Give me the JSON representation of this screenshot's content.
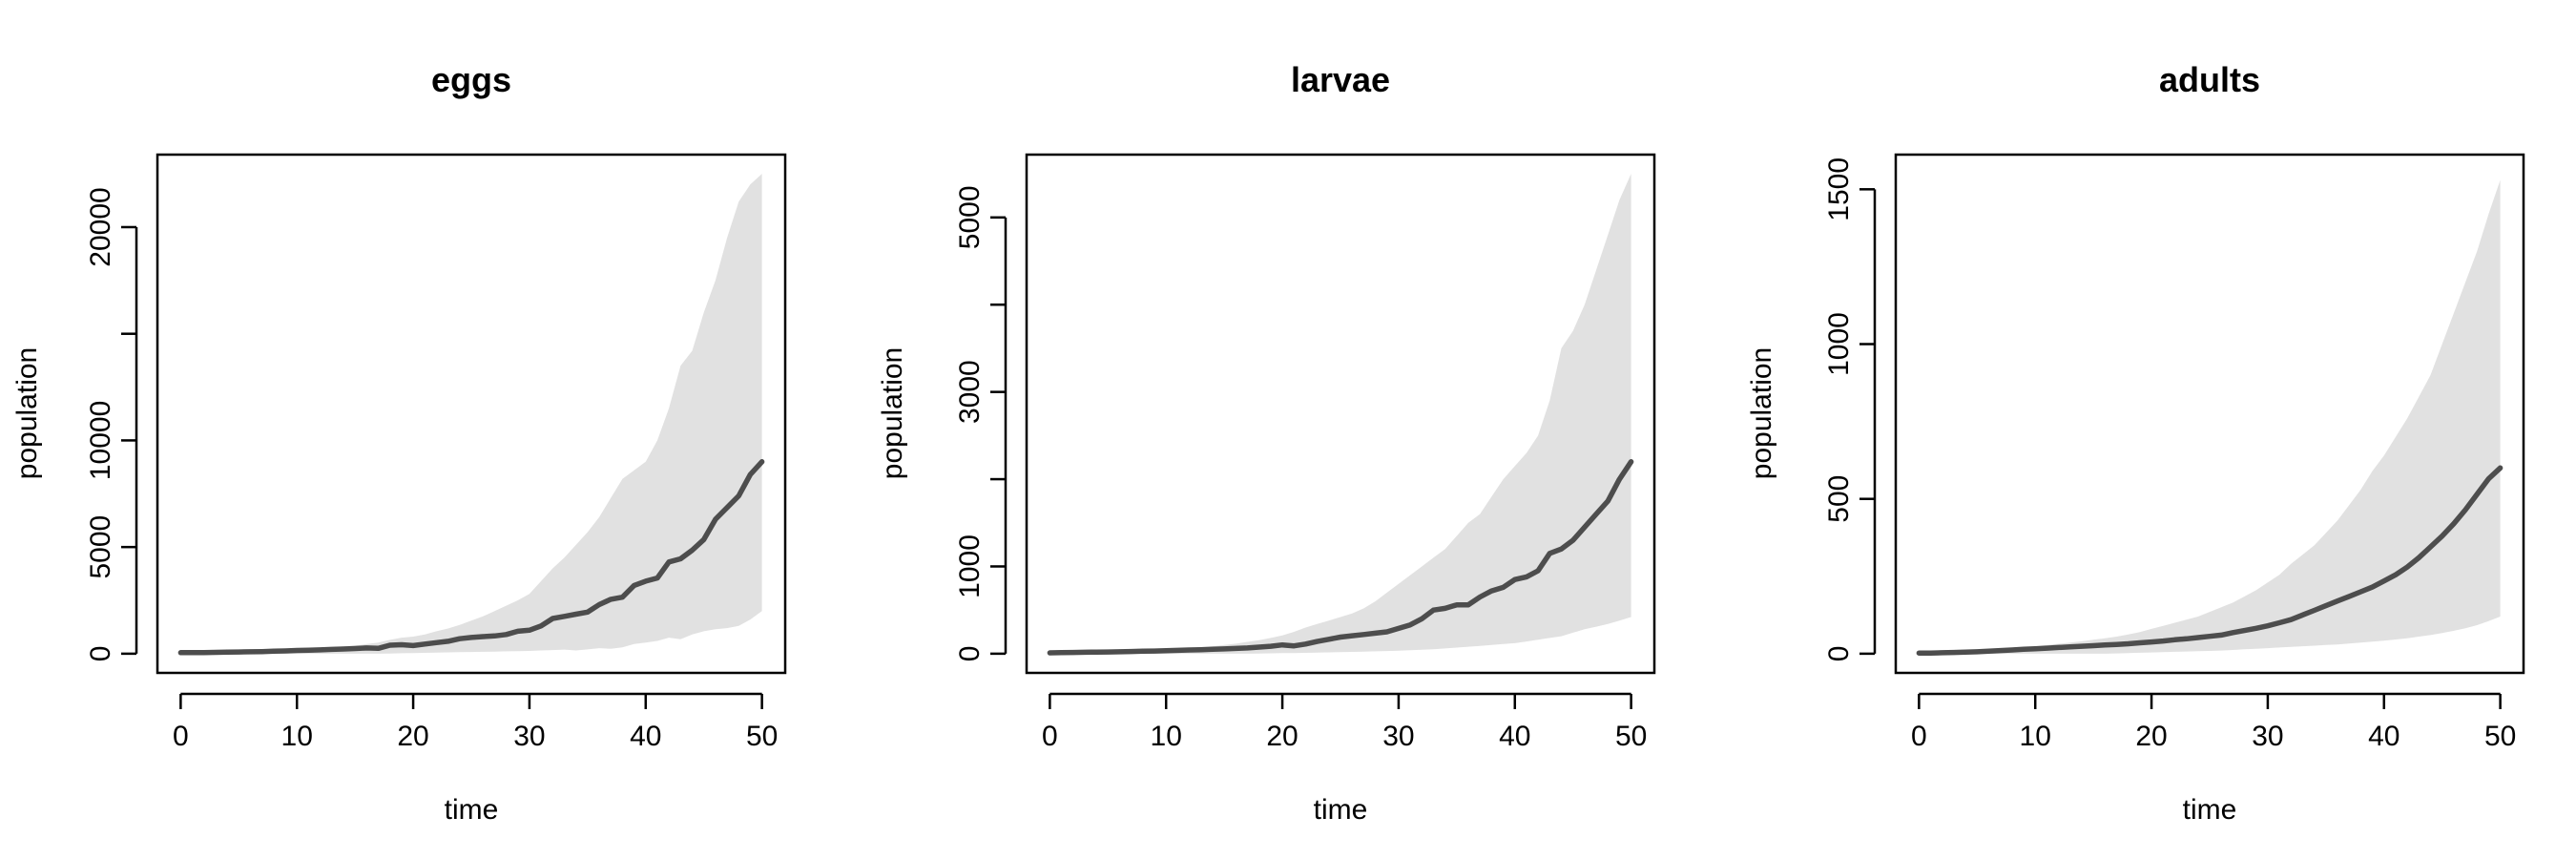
{
  "colors": {
    "band": "#e1e1e1",
    "line": "#4d4d4d",
    "axis": "#000000",
    "background": "#ffffff"
  },
  "chart_data": [
    {
      "type": "area",
      "title": "eggs",
      "xlabel": "time",
      "ylabel": "population",
      "xlim": [
        0,
        50
      ],
      "ylim": [
        0,
        22500
      ],
      "xticks": [
        0,
        10,
        20,
        30,
        40,
        50
      ],
      "yticks": [
        0,
        5000,
        10000,
        15000,
        20000
      ],
      "ytick_labels": [
        "0",
        "5000",
        "10000",
        "",
        "20000"
      ],
      "grid": false,
      "x": [
        0,
        1,
        2,
        3,
        4,
        5,
        6,
        7,
        8,
        9,
        10,
        11,
        12,
        13,
        14,
        15,
        16,
        17,
        18,
        19,
        20,
        21,
        22,
        23,
        24,
        25,
        26,
        27,
        28,
        29,
        30,
        31,
        32,
        33,
        34,
        35,
        36,
        37,
        38,
        39,
        40,
        41,
        42,
        43,
        44,
        45,
        46,
        47,
        48,
        49,
        50
      ],
      "mean": [
        50,
        50,
        55,
        60,
        70,
        80,
        90,
        100,
        115,
        130,
        150,
        165,
        180,
        200,
        220,
        240,
        270,
        250,
        400,
        420,
        380,
        450,
        520,
        580,
        700,
        760,
        800,
        830,
        900,
        1050,
        1100,
        1300,
        1650,
        1750,
        1850,
        1950,
        2300,
        2550,
        2650,
        3200,
        3400,
        3550,
        4300,
        4450,
        4850,
        5350,
        6300,
        6850,
        7400,
        8400,
        9000
      ],
      "lower": [
        0,
        0,
        0,
        0,
        0,
        0,
        0,
        0,
        0,
        0,
        0,
        0,
        0,
        0,
        0,
        0,
        0,
        0,
        10,
        20,
        30,
        40,
        50,
        60,
        70,
        80,
        90,
        100,
        110,
        120,
        130,
        150,
        170,
        190,
        150,
        200,
        260,
        230,
        300,
        450,
        520,
        600,
        750,
        680,
        900,
        1050,
        1150,
        1200,
        1300,
        1600,
        2000
      ],
      "upper": [
        60,
        70,
        80,
        90,
        110,
        120,
        140,
        150,
        170,
        190,
        210,
        240,
        270,
        300,
        340,
        380,
        450,
        520,
        650,
        750,
        800,
        900,
        1050,
        1180,
        1350,
        1550,
        1750,
        2000,
        2250,
        2500,
        2800,
        3400,
        4000,
        4500,
        5100,
        5700,
        6400,
        7300,
        8200,
        8600,
        9000,
        10000,
        11500,
        13500,
        14200,
        16000,
        17500,
        19500,
        21200,
        22000,
        22500
      ]
    },
    {
      "type": "area",
      "title": "larvae",
      "xlabel": "time",
      "ylabel": "population",
      "xlim": [
        0,
        50
      ],
      "ylim": [
        0,
        5500
      ],
      "xticks": [
        0,
        10,
        20,
        30,
        40,
        50
      ],
      "yticks": [
        0,
        1000,
        2000,
        3000,
        4000,
        5000
      ],
      "ytick_labels": [
        "0",
        "1000",
        "",
        "3000",
        "",
        "5000"
      ],
      "grid": false,
      "x": [
        0,
        1,
        2,
        3,
        4,
        5,
        6,
        7,
        8,
        9,
        10,
        11,
        12,
        13,
        14,
        15,
        16,
        17,
        18,
        19,
        20,
        21,
        22,
        23,
        24,
        25,
        26,
        27,
        28,
        29,
        30,
        31,
        32,
        33,
        34,
        35,
        36,
        37,
        38,
        39,
        40,
        41,
        42,
        43,
        44,
        45,
        46,
        47,
        48,
        49,
        50
      ],
      "mean": [
        10,
        12,
        14,
        16,
        18,
        20,
        22,
        25,
        28,
        31,
        35,
        38,
        42,
        46,
        50,
        55,
        60,
        66,
        75,
        85,
        100,
        90,
        110,
        140,
        165,
        190,
        205,
        220,
        235,
        250,
        290,
        330,
        400,
        500,
        520,
        560,
        560,
        650,
        720,
        760,
        850,
        880,
        950,
        1150,
        1200,
        1300,
        1450,
        1600,
        1750,
        2000,
        2200
      ],
      "lower": [
        0,
        0,
        0,
        0,
        0,
        0,
        0,
        0,
        0,
        0,
        0,
        0,
        0,
        0,
        0,
        0,
        0,
        0,
        2,
        4,
        6,
        8,
        10,
        12,
        15,
        18,
        21,
        24,
        27,
        30,
        35,
        40,
        45,
        50,
        60,
        70,
        80,
        90,
        100,
        110,
        120,
        140,
        160,
        180,
        200,
        240,
        280,
        310,
        340,
        380,
        420
      ],
      "upper": [
        15,
        17,
        19,
        22,
        25,
        28,
        32,
        36,
        40,
        45,
        50,
        58,
        66,
        75,
        85,
        100,
        115,
        135,
        155,
        180,
        210,
        250,
        300,
        340,
        380,
        420,
        460,
        520,
        600,
        700,
        800,
        900,
        1000,
        1100,
        1200,
        1350,
        1500,
        1600,
        1800,
        2000,
        2150,
        2300,
        2500,
        2900,
        3500,
        3700,
        4000,
        4400,
        4800,
        5200,
        5500
      ]
    },
    {
      "type": "area",
      "title": "adults",
      "xlabel": "time",
      "ylabel": "population",
      "xlim": [
        0,
        50
      ],
      "ylim": [
        0,
        1550
      ],
      "xticks": [
        0,
        10,
        20,
        30,
        40,
        50
      ],
      "yticks": [
        0,
        500,
        1000,
        1500
      ],
      "ytick_labels": [
        "0",
        "500",
        "1000",
        "1500"
      ],
      "grid": false,
      "x": [
        0,
        1,
        2,
        3,
        4,
        5,
        6,
        7,
        8,
        9,
        10,
        11,
        12,
        13,
        14,
        15,
        16,
        17,
        18,
        19,
        20,
        21,
        22,
        23,
        24,
        25,
        26,
        27,
        28,
        29,
        30,
        31,
        32,
        33,
        34,
        35,
        36,
        37,
        38,
        39,
        40,
        41,
        42,
        43,
        44,
        45,
        46,
        47,
        48,
        49,
        50
      ],
      "mean": [
        2,
        2,
        3,
        4,
        5,
        6,
        8,
        10,
        12,
        14,
        16,
        18,
        20,
        22,
        24,
        26,
        28,
        30,
        32,
        35,
        38,
        41,
        45,
        48,
        52,
        56,
        60,
        68,
        75,
        82,
        90,
        100,
        110,
        125,
        140,
        155,
        170,
        185,
        200,
        215,
        235,
        255,
        280,
        310,
        345,
        380,
        420,
        465,
        515,
        565,
        600
      ],
      "lower": [
        0,
        0,
        0,
        0,
        0,
        0,
        0,
        0,
        0,
        0,
        0,
        0,
        0,
        0,
        0,
        0,
        0,
        1,
        2,
        3,
        4,
        5,
        6,
        7,
        8,
        9,
        10,
        12,
        14,
        16,
        18,
        20,
        22,
        24,
        26,
        28,
        30,
        33,
        36,
        39,
        42,
        46,
        50,
        55,
        60,
        67,
        74,
        82,
        92,
        105,
        120
      ],
      "upper": [
        4,
        5,
        6,
        7,
        8,
        9,
        11,
        13,
        16,
        20,
        24,
        28,
        32,
        36,
        40,
        45,
        50,
        55,
        62,
        70,
        80,
        90,
        100,
        110,
        120,
        135,
        150,
        165,
        185,
        205,
        230,
        255,
        290,
        320,
        350,
        390,
        430,
        480,
        530,
        590,
        640,
        700,
        760,
        830,
        900,
        1000,
        1100,
        1200,
        1300,
        1420,
        1530
      ]
    }
  ]
}
